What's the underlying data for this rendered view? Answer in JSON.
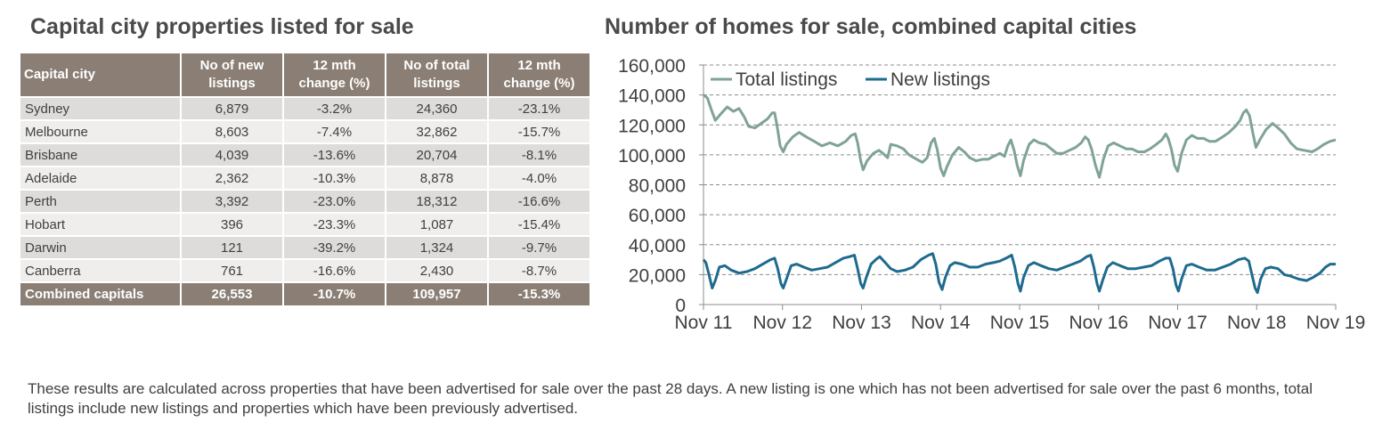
{
  "left_title": "Capital city properties listed for sale",
  "right_title": "Number of homes for sale, combined capital cities",
  "table": {
    "headers": [
      "Capital city",
      "No of new listings",
      "12 mth change (%)",
      "No of total listings",
      "12 mth change (%)"
    ],
    "rows": [
      {
        "city": "Sydney",
        "new": "6,879",
        "new_chg": "-3.2%",
        "total": "24,360",
        "total_chg": "-23.1%"
      },
      {
        "city": "Melbourne",
        "new": "8,603",
        "new_chg": "-7.4%",
        "total": "32,862",
        "total_chg": "-15.7%"
      },
      {
        "city": "Brisbane",
        "new": "4,039",
        "new_chg": "-13.6%",
        "total": "20,704",
        "total_chg": "-8.1%"
      },
      {
        "city": "Adelaide",
        "new": "2,362",
        "new_chg": "-10.3%",
        "total": "8,878",
        "total_chg": "-4.0%"
      },
      {
        "city": "Perth",
        "new": "3,392",
        "new_chg": "-23.0%",
        "total": "18,312",
        "total_chg": "-16.6%"
      },
      {
        "city": "Hobart",
        "new": "396",
        "new_chg": "-23.3%",
        "total": "1,087",
        "total_chg": "-15.4%"
      },
      {
        "city": "Darwin",
        "new": "121",
        "new_chg": "-39.2%",
        "total": "1,324",
        "total_chg": "-9.7%"
      },
      {
        "city": "Canberra",
        "new": "761",
        "new_chg": "-16.6%",
        "total": "2,430",
        "total_chg": "-8.7%"
      }
    ],
    "footer": {
      "city": "Combined capitals",
      "new": "26,553",
      "new_chg": "-10.7%",
      "total": "109,957",
      "total_chg": "-15.3%"
    }
  },
  "footnote": "These results are calculated across properties that have been advertised for sale over the past 28 days.  A new listing is one which has not been advertised for sale over the past 6 months, total listings include new listings and properties which have been previously advertised.",
  "colors": {
    "header_bg": "#8b7f75",
    "row_odd": "#dedcdb",
    "row_even": "#efeeed",
    "total_line": "#7fa396",
    "new_line": "#1e6b8f"
  },
  "chart_data": {
    "type": "line",
    "title": "Number of homes for sale, combined capital cities",
    "x_ticks": [
      "Nov 11",
      "Nov 12",
      "Nov 13",
      "Nov 14",
      "Nov 15",
      "Nov 16",
      "Nov 17",
      "Nov 18",
      "Nov 19"
    ],
    "y_ticks": [
      "0",
      "20,000",
      "40,000",
      "60,000",
      "80,000",
      "100,000",
      "120,000",
      "140,000",
      "160,000"
    ],
    "ylim": [
      0,
      160000
    ],
    "grid": "horizontal dashed",
    "legend": "top-left",
    "series": [
      {
        "name": "Total listings",
        "color": "#7fa396",
        "points": [
          [
            2011.85,
            140000
          ],
          [
            2011.9,
            138000
          ],
          [
            2011.95,
            130000
          ],
          [
            2012.0,
            123000
          ],
          [
            2012.08,
            128000
          ],
          [
            2012.15,
            132000
          ],
          [
            2012.23,
            129000
          ],
          [
            2012.3,
            131000
          ],
          [
            2012.37,
            125000
          ],
          [
            2012.42,
            119000
          ],
          [
            2012.5,
            118000
          ],
          [
            2012.58,
            121000
          ],
          [
            2012.66,
            124000
          ],
          [
            2012.72,
            128000
          ],
          [
            2012.75,
            128000
          ],
          [
            2012.78,
            120000
          ],
          [
            2012.82,
            106000
          ],
          [
            2012.86,
            102000
          ],
          [
            2012.9,
            107000
          ],
          [
            2012.98,
            112000
          ],
          [
            2013.06,
            115000
          ],
          [
            2013.15,
            112000
          ],
          [
            2013.25,
            109000
          ],
          [
            2013.35,
            106000
          ],
          [
            2013.45,
            108000
          ],
          [
            2013.55,
            106000
          ],
          [
            2013.65,
            109000
          ],
          [
            2013.72,
            113000
          ],
          [
            2013.77,
            114000
          ],
          [
            2013.8,
            108000
          ],
          [
            2013.84,
            96000
          ],
          [
            2013.87,
            90000
          ],
          [
            2013.92,
            96000
          ],
          [
            2014.0,
            101000
          ],
          [
            2014.07,
            103000
          ],
          [
            2014.12,
            101000
          ],
          [
            2014.18,
            98000
          ],
          [
            2014.22,
            107000
          ],
          [
            2014.3,
            106000
          ],
          [
            2014.38,
            104000
          ],
          [
            2014.45,
            100000
          ],
          [
            2014.55,
            97000
          ],
          [
            2014.62,
            95000
          ],
          [
            2014.68,
            98000
          ],
          [
            2014.73,
            108000
          ],
          [
            2014.77,
            111000
          ],
          [
            2014.81,
            103000
          ],
          [
            2014.85,
            91000
          ],
          [
            2014.89,
            86000
          ],
          [
            2014.93,
            92000
          ],
          [
            2015.0,
            100000
          ],
          [
            2015.08,
            105000
          ],
          [
            2015.15,
            102000
          ],
          [
            2015.22,
            98000
          ],
          [
            2015.3,
            96000
          ],
          [
            2015.38,
            97000
          ],
          [
            2015.45,
            97000
          ],
          [
            2015.52,
            99000
          ],
          [
            2015.6,
            101000
          ],
          [
            2015.66,
            99000
          ],
          [
            2015.7,
            106000
          ],
          [
            2015.74,
            110000
          ],
          [
            2015.78,
            103000
          ],
          [
            2015.82,
            93000
          ],
          [
            2015.86,
            86000
          ],
          [
            2015.9,
            96000
          ],
          [
            2015.97,
            107000
          ],
          [
            2016.03,
            110000
          ],
          [
            2016.1,
            108000
          ],
          [
            2016.18,
            107000
          ],
          [
            2016.25,
            104000
          ],
          [
            2016.32,
            101000
          ],
          [
            2016.4,
            101000
          ],
          [
            2016.48,
            103000
          ],
          [
            2016.56,
            105000
          ],
          [
            2016.63,
            108000
          ],
          [
            2016.68,
            112000
          ],
          [
            2016.72,
            110000
          ],
          [
            2016.76,
            104000
          ],
          [
            2016.81,
            93000
          ],
          [
            2016.86,
            85000
          ],
          [
            2016.91,
            97000
          ],
          [
            2016.97,
            106000
          ],
          [
            2017.04,
            108000
          ],
          [
            2017.12,
            106000
          ],
          [
            2017.2,
            104000
          ],
          [
            2017.27,
            104000
          ],
          [
            2017.35,
            102000
          ],
          [
            2017.43,
            102000
          ],
          [
            2017.5,
            104000
          ],
          [
            2017.58,
            107000
          ],
          [
            2017.65,
            110000
          ],
          [
            2017.7,
            114000
          ],
          [
            2017.73,
            111000
          ],
          [
            2017.77,
            104000
          ],
          [
            2017.81,
            93000
          ],
          [
            2017.85,
            89000
          ],
          [
            2017.9,
            101000
          ],
          [
            2017.96,
            110000
          ],
          [
            2018.03,
            113000
          ],
          [
            2018.1,
            111000
          ],
          [
            2018.18,
            111000
          ],
          [
            2018.25,
            109000
          ],
          [
            2018.33,
            109000
          ],
          [
            2018.42,
            112000
          ],
          [
            2018.5,
            115000
          ],
          [
            2018.58,
            119000
          ],
          [
            2018.64,
            123000
          ],
          [
            2018.68,
            128000
          ],
          [
            2018.72,
            130000
          ],
          [
            2018.76,
            126000
          ],
          [
            2018.8,
            115000
          ],
          [
            2018.84,
            105000
          ],
          [
            2018.9,
            111000
          ],
          [
            2018.97,
            117000
          ],
          [
            2019.05,
            121000
          ],
          [
            2019.12,
            118000
          ],
          [
            2019.2,
            114000
          ],
          [
            2019.28,
            108000
          ],
          [
            2019.36,
            104000
          ],
          [
            2019.45,
            103000
          ],
          [
            2019.55,
            102000
          ],
          [
            2019.62,
            104000
          ],
          [
            2019.7,
            107000
          ],
          [
            2019.78,
            109000
          ],
          [
            2019.85,
            110000
          ]
        ]
      },
      {
        "name": "New listings",
        "color": "#1e6b8f",
        "points": [
          [
            2011.85,
            30000
          ],
          [
            2011.88,
            28000
          ],
          [
            2011.92,
            20000
          ],
          [
            2011.96,
            11000
          ],
          [
            2012.0,
            16000
          ],
          [
            2012.05,
            25000
          ],
          [
            2012.12,
            26000
          ],
          [
            2012.2,
            23000
          ],
          [
            2012.3,
            21000
          ],
          [
            2012.4,
            22000
          ],
          [
            2012.5,
            24000
          ],
          [
            2012.6,
            27000
          ],
          [
            2012.7,
            30000
          ],
          [
            2012.75,
            31000
          ],
          [
            2012.79,
            24000
          ],
          [
            2012.83,
            14000
          ],
          [
            2012.86,
            11000
          ],
          [
            2012.9,
            17000
          ],
          [
            2012.96,
            26000
          ],
          [
            2013.03,
            27000
          ],
          [
            2013.12,
            25000
          ],
          [
            2013.22,
            23000
          ],
          [
            2013.32,
            24000
          ],
          [
            2013.42,
            25000
          ],
          [
            2013.52,
            28000
          ],
          [
            2013.62,
            31000
          ],
          [
            2013.7,
            32000
          ],
          [
            2013.76,
            33000
          ],
          [
            2013.8,
            24000
          ],
          [
            2013.84,
            14000
          ],
          [
            2013.87,
            11000
          ],
          [
            2013.91,
            18000
          ],
          [
            2013.97,
            27000
          ],
          [
            2014.03,
            30000
          ],
          [
            2014.08,
            32000
          ],
          [
            2014.15,
            28000
          ],
          [
            2014.22,
            24000
          ],
          [
            2014.3,
            22000
          ],
          [
            2014.4,
            23000
          ],
          [
            2014.5,
            25000
          ],
          [
            2014.6,
            30000
          ],
          [
            2014.7,
            33000
          ],
          [
            2014.75,
            34000
          ],
          [
            2014.79,
            27000
          ],
          [
            2014.83,
            15000
          ],
          [
            2014.87,
            10000
          ],
          [
            2014.91,
            18000
          ],
          [
            2014.97,
            26000
          ],
          [
            2015.03,
            28000
          ],
          [
            2015.12,
            27000
          ],
          [
            2015.22,
            25000
          ],
          [
            2015.32,
            25000
          ],
          [
            2015.42,
            27000
          ],
          [
            2015.52,
            28000
          ],
          [
            2015.6,
            29000
          ],
          [
            2015.68,
            31000
          ],
          [
            2015.75,
            33000
          ],
          [
            2015.79,
            25000
          ],
          [
            2015.83,
            14000
          ],
          [
            2015.86,
            9000
          ],
          [
            2015.9,
            18000
          ],
          [
            2015.96,
            26000
          ],
          [
            2016.03,
            28000
          ],
          [
            2016.12,
            26000
          ],
          [
            2016.22,
            24000
          ],
          [
            2016.32,
            23000
          ],
          [
            2016.42,
            25000
          ],
          [
            2016.52,
            27000
          ],
          [
            2016.62,
            29000
          ],
          [
            2016.7,
            32000
          ],
          [
            2016.75,
            33000
          ],
          [
            2016.79,
            25000
          ],
          [
            2016.83,
            14000
          ],
          [
            2016.86,
            9000
          ],
          [
            2016.9,
            16000
          ],
          [
            2016.96,
            25000
          ],
          [
            2017.03,
            28000
          ],
          [
            2017.12,
            26000
          ],
          [
            2017.22,
            24000
          ],
          [
            2017.32,
            24000
          ],
          [
            2017.42,
            25000
          ],
          [
            2017.52,
            26000
          ],
          [
            2017.62,
            29000
          ],
          [
            2017.7,
            31000
          ],
          [
            2017.75,
            31000
          ],
          [
            2017.79,
            24000
          ],
          [
            2017.83,
            13000
          ],
          [
            2017.86,
            9000
          ],
          [
            2017.9,
            17000
          ],
          [
            2017.96,
            26000
          ],
          [
            2018.03,
            27000
          ],
          [
            2018.12,
            25000
          ],
          [
            2018.22,
            23000
          ],
          [
            2018.32,
            23000
          ],
          [
            2018.42,
            25000
          ],
          [
            2018.52,
            27000
          ],
          [
            2018.62,
            30000
          ],
          [
            2018.7,
            31000
          ],
          [
            2018.75,
            29000
          ],
          [
            2018.79,
            20000
          ],
          [
            2018.83,
            11000
          ],
          [
            2018.86,
            8000
          ],
          [
            2018.9,
            17000
          ],
          [
            2018.96,
            24000
          ],
          [
            2019.03,
            25000
          ],
          [
            2019.12,
            24000
          ],
          [
            2019.2,
            20000
          ],
          [
            2019.28,
            19000
          ],
          [
            2019.38,
            17000
          ],
          [
            2019.48,
            16000
          ],
          [
            2019.56,
            18000
          ],
          [
            2019.65,
            21000
          ],
          [
            2019.72,
            25000
          ],
          [
            2019.78,
            27000
          ],
          [
            2019.85,
            27000
          ]
        ]
      }
    ]
  }
}
